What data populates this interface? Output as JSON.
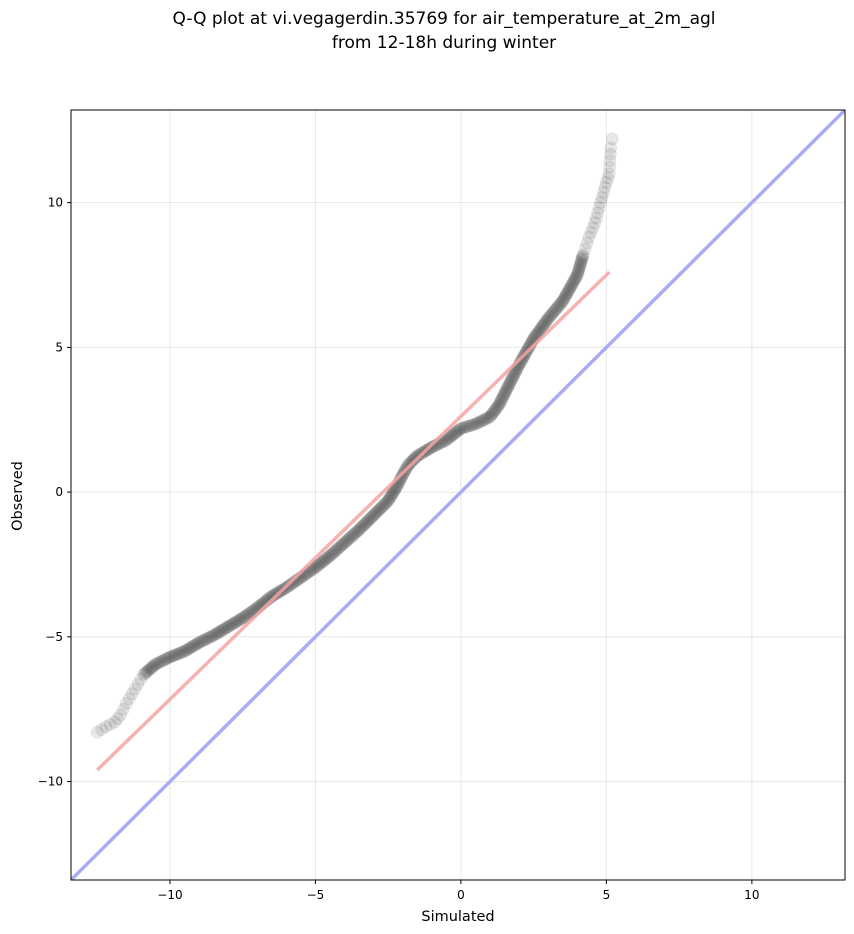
{
  "title_line1": "Q-Q plot at vi.vegagerdin.35769 for air_temperature_at_2m_agl",
  "title_line2": "from 12-18h during winter",
  "chart_data": {
    "type": "scatter",
    "title": "Q-Q plot at vi.vegagerdin.35769 for air_temperature_at_2m_agl\nfrom 12-18h during winter",
    "xlabel": "Simulated",
    "ylabel": "Observed",
    "xlim": [
      -13.4,
      13.2
    ],
    "ylim": [
      -13.4,
      13.2
    ],
    "grid": true,
    "x_ticks": [
      -10,
      -5,
      0,
      5,
      10
    ],
    "y_ticks": [
      -10,
      -5,
      0,
      5,
      10
    ],
    "x_tick_labels": [
      "−10",
      "−5",
      "0",
      "5",
      "10"
    ],
    "y_tick_labels": [
      "−10",
      "−5",
      "0",
      "5",
      "10"
    ],
    "quantile_curve": [
      [
        -12.5,
        -8.3
      ],
      [
        -12.2,
        -8.1
      ],
      [
        -11.9,
        -7.95
      ],
      [
        -11.7,
        -7.7
      ],
      [
        -11.5,
        -7.3
      ],
      [
        -11.2,
        -6.8
      ],
      [
        -10.9,
        -6.3
      ],
      [
        -10.5,
        -5.95
      ],
      [
        -10.0,
        -5.7
      ],
      [
        -9.5,
        -5.5
      ],
      [
        -9.0,
        -5.2
      ],
      [
        -8.5,
        -4.95
      ],
      [
        -8.0,
        -4.65
      ],
      [
        -7.5,
        -4.35
      ],
      [
        -7.0,
        -4.0
      ],
      [
        -6.5,
        -3.6
      ],
      [
        -6.0,
        -3.3
      ],
      [
        -5.5,
        -2.95
      ],
      [
        -5.0,
        -2.6
      ],
      [
        -4.5,
        -2.2
      ],
      [
        -4.0,
        -1.75
      ],
      [
        -3.5,
        -1.3
      ],
      [
        -3.0,
        -0.8
      ],
      [
        -2.5,
        -0.3
      ],
      [
        -2.2,
        0.2
      ],
      [
        -2.0,
        0.6
      ],
      [
        -1.8,
        0.95
      ],
      [
        -1.5,
        1.25
      ],
      [
        -1.0,
        1.55
      ],
      [
        -0.5,
        1.8
      ],
      [
        0.0,
        2.2
      ],
      [
        0.5,
        2.35
      ],
      [
        1.0,
        2.6
      ],
      [
        1.3,
        3.0
      ],
      [
        1.6,
        3.6
      ],
      [
        2.0,
        4.4
      ],
      [
        2.5,
        5.3
      ],
      [
        3.0,
        6.0
      ],
      [
        3.5,
        6.6
      ],
      [
        4.0,
        7.5
      ],
      [
        4.2,
        8.2
      ],
      [
        4.4,
        8.8
      ],
      [
        4.6,
        9.3
      ],
      [
        4.8,
        10.0
      ],
      [
        5.0,
        10.7
      ],
      [
        5.1,
        11.0
      ],
      [
        5.15,
        11.9
      ],
      [
        5.2,
        12.2
      ]
    ],
    "fit_line": {
      "x": [
        -12.5,
        5.1
      ],
      "y": [
        -9.6,
        7.6
      ],
      "color": "#f5a3a3"
    },
    "identity_line": {
      "x": [
        -13.4,
        13.2
      ],
      "y": [
        -13.4,
        13.2
      ],
      "color": "#a9acf5"
    },
    "marker_color": "#000000"
  }
}
